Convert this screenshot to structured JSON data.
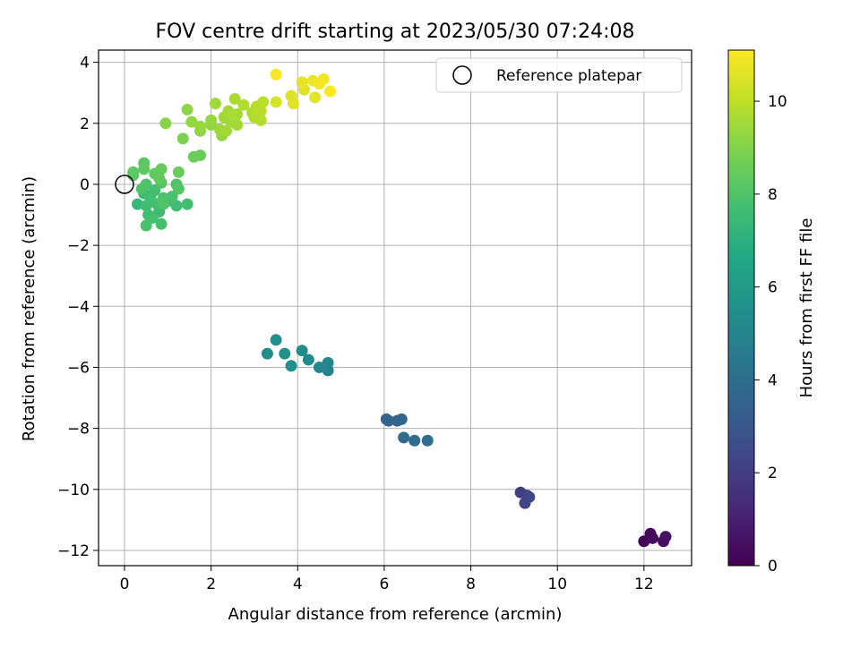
{
  "chart_data": {
    "type": "scatter",
    "title": "FOV centre drift starting at 2023/05/30 07:24:08",
    "xlabel": "Angular distance from reference (arcmin)",
    "ylabel": "Rotation from reference (arcmin)",
    "xlim": [
      -0.6,
      13.1
    ],
    "ylim": [
      -12.5,
      4.4
    ],
    "xticks": [
      0,
      2,
      4,
      6,
      8,
      10,
      12
    ],
    "yticks": [
      -12,
      -10,
      -8,
      -6,
      -4,
      -2,
      0,
      2,
      4
    ],
    "grid": true,
    "legend": {
      "position": "top-right",
      "entries": [
        "Reference platepar"
      ]
    },
    "reference_point": {
      "x": 0,
      "y": 0,
      "label": "Reference platepar"
    },
    "colorbar": {
      "label": "Hours from first FF file",
      "colormap": "viridis",
      "min": 0,
      "max": 11.1,
      "ticks": [
        0,
        2,
        4,
        6,
        8,
        10
      ]
    },
    "series": [
      {
        "points": [
          [
            12.0,
            -11.7,
            0.1
          ],
          [
            12.15,
            -11.45,
            0.2
          ],
          [
            12.2,
            -11.6,
            0.3
          ],
          [
            12.45,
            -11.7,
            0.4
          ],
          [
            12.5,
            -11.55,
            0.5
          ],
          [
            9.15,
            -10.1,
            2.0
          ],
          [
            9.3,
            -10.2,
            2.1
          ],
          [
            9.25,
            -10.45,
            2.2
          ],
          [
            9.35,
            -10.25,
            2.3
          ],
          [
            6.05,
            -7.7,
            3.5
          ],
          [
            6.3,
            -7.75,
            3.6
          ],
          [
            6.4,
            -7.7,
            3.7
          ],
          [
            6.45,
            -8.3,
            3.8
          ],
          [
            6.7,
            -8.4,
            3.9
          ],
          [
            7.0,
            -8.4,
            4.0
          ],
          [
            6.1,
            -7.75,
            3.55
          ],
          [
            3.3,
            -5.55,
            5.4
          ],
          [
            3.5,
            -5.1,
            5.5
          ],
          [
            3.7,
            -5.55,
            5.6
          ],
          [
            3.85,
            -5.95,
            5.5
          ],
          [
            4.1,
            -5.45,
            5.3
          ],
          [
            4.25,
            -5.75,
            5.2
          ],
          [
            4.5,
            -6.0,
            5.1
          ],
          [
            4.7,
            -5.85,
            5.0
          ],
          [
            4.7,
            -6.1,
            4.9
          ],
          [
            0.3,
            -0.65,
            7.4
          ],
          [
            0.45,
            -0.3,
            7.5
          ],
          [
            0.5,
            -0.7,
            7.6
          ],
          [
            0.6,
            -0.45,
            7.7
          ],
          [
            0.55,
            -1.0,
            7.65
          ],
          [
            0.7,
            -0.2,
            7.7
          ],
          [
            0.75,
            -0.65,
            7.8
          ],
          [
            0.8,
            -0.9,
            7.55
          ],
          [
            0.9,
            -0.45,
            7.9
          ],
          [
            1.0,
            -0.55,
            7.7
          ],
          [
            1.1,
            -0.4,
            7.85
          ],
          [
            1.2,
            -0.7,
            7.6
          ],
          [
            0.9,
            -0.65,
            8.0
          ],
          [
            0.5,
            -1.35,
            7.9
          ],
          [
            0.65,
            -1.1,
            7.75
          ],
          [
            0.85,
            -1.3,
            7.8
          ],
          [
            1.45,
            -0.65,
            7.7
          ],
          [
            0.5,
            0.0,
            8.0
          ],
          [
            0.4,
            -0.15,
            7.95
          ],
          [
            0.85,
            0.05,
            8.1
          ],
          [
            1.2,
            0.0,
            8.0
          ],
          [
            1.25,
            -0.15,
            8.1
          ],
          [
            0.2,
            0.3,
            8.2
          ],
          [
            0.2,
            0.4,
            8.3
          ],
          [
            0.45,
            0.7,
            8.25
          ],
          [
            0.45,
            0.5,
            8.35
          ],
          [
            0.7,
            0.35,
            8.3
          ],
          [
            0.85,
            0.5,
            8.45
          ],
          [
            0.8,
            0.2,
            8.4
          ],
          [
            1.25,
            0.4,
            8.5
          ],
          [
            1.6,
            0.9,
            8.6
          ],
          [
            1.75,
            0.95,
            8.55
          ],
          [
            1.35,
            1.5,
            8.9
          ],
          [
            0.95,
            2.0,
            9.1
          ],
          [
            1.45,
            2.45,
            9.2
          ],
          [
            1.55,
            2.05,
            9.3
          ],
          [
            1.75,
            1.75,
            9.2
          ],
          [
            1.75,
            1.9,
            9.4
          ],
          [
            2.0,
            1.95,
            9.25
          ],
          [
            2.0,
            2.1,
            9.35
          ],
          [
            2.1,
            2.65,
            9.5
          ],
          [
            2.2,
            1.8,
            9.45
          ],
          [
            2.25,
            1.6,
            9.3
          ],
          [
            2.3,
            2.2,
            9.5
          ],
          [
            2.35,
            1.75,
            9.55
          ],
          [
            2.4,
            2.4,
            9.6
          ],
          [
            2.45,
            2.05,
            9.5
          ],
          [
            2.5,
            2.25,
            9.65
          ],
          [
            2.55,
            2.8,
            9.7
          ],
          [
            2.6,
            2.3,
            9.6
          ],
          [
            2.6,
            1.95,
            9.55
          ],
          [
            2.75,
            2.6,
            9.75
          ],
          [
            2.95,
            2.35,
            9.7
          ],
          [
            3.0,
            2.2,
            9.8
          ],
          [
            3.05,
            2.55,
            9.85
          ],
          [
            3.15,
            2.4,
            9.9
          ],
          [
            3.15,
            2.1,
            9.8
          ],
          [
            3.2,
            2.7,
            9.95
          ],
          [
            3.5,
            2.7,
            10.4
          ],
          [
            3.5,
            3.6,
            11.0
          ],
          [
            3.85,
            2.9,
            10.5
          ],
          [
            3.9,
            2.65,
            10.6
          ],
          [
            4.1,
            3.35,
            10.7
          ],
          [
            4.15,
            3.1,
            10.6
          ],
          [
            4.35,
            3.4,
            10.8
          ],
          [
            4.4,
            2.85,
            10.65
          ],
          [
            4.5,
            3.3,
            10.9
          ],
          [
            4.6,
            3.45,
            10.95
          ],
          [
            4.75,
            3.05,
            11.05
          ]
        ]
      }
    ]
  }
}
